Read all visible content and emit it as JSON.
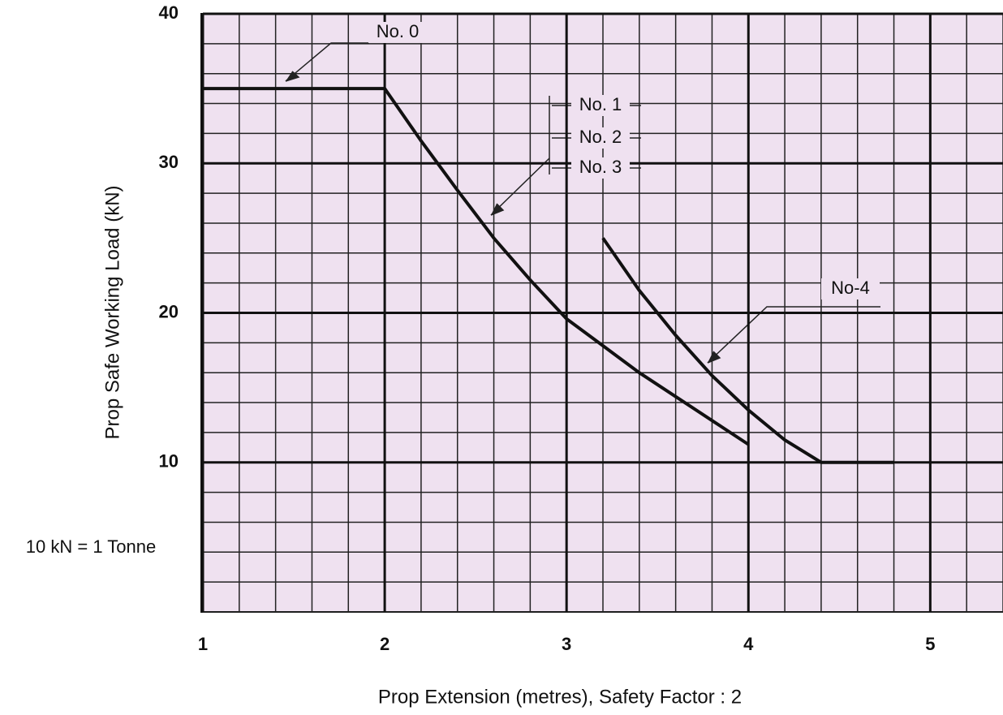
{
  "chart_data": {
    "type": "line",
    "x_label": "Prop Extension (metres), Safety Factor : 2",
    "y_label": "Prop Safe Working Load (kN)",
    "note": "10 kN = 1 Tonne",
    "annotations": [
      "No. 0",
      "No. 1",
      "No. 2",
      "No. 3",
      "No-4"
    ],
    "xlim": [
      1,
      5.4
    ],
    "xticks": [
      1,
      2,
      3,
      4,
      5
    ],
    "ylim": [
      0,
      40
    ],
    "yticks": [
      10,
      20,
      30,
      40
    ],
    "grid": true,
    "minor_grid": true,
    "background": "#efe1f0",
    "color": "#111111",
    "series": [
      {
        "x": [
          1,
          2,
          2.2,
          2.4,
          2.6,
          2.8,
          3,
          3.2,
          3.4,
          3.6,
          3.8,
          4
        ],
        "values": [
          35,
          35,
          31.5,
          28.2,
          25,
          22.2,
          19.6,
          17.8,
          16,
          14.4,
          12.8,
          11.2
        ]
      },
      {
        "x": [
          3.2,
          3.4,
          3.6,
          3.8,
          4,
          4.2,
          4.4,
          4.8
        ],
        "values": [
          25,
          21.5,
          18.5,
          15.8,
          13.5,
          11.5,
          10,
          10
        ]
      }
    ]
  }
}
